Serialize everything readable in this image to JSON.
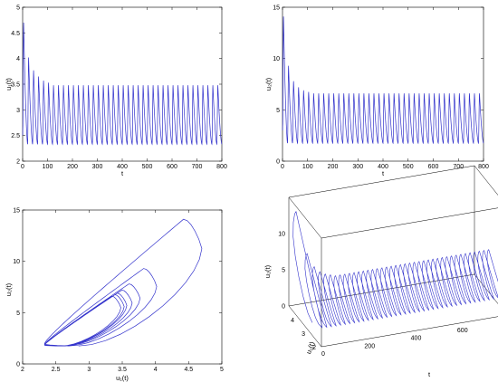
{
  "chart_data": [
    {
      "type": "line",
      "xlabel": "t",
      "ylabel": "u₁(t)",
      "xlim": [
        0,
        800
      ],
      "ylim": [
        2,
        5
      ],
      "xticks": [
        "0",
        "100",
        "200",
        "300",
        "400",
        "500",
        "600",
        "700",
        "800"
      ],
      "yticks": [
        "2",
        "2.5",
        "3",
        "3.5",
        "4",
        "4.5",
        "5"
      ],
      "series": [
        {
          "color": "#3333cc",
          "period": 20,
          "oscillation_max": 3.48,
          "oscillation_min": 2.33,
          "first_peaks": [
            {
              "t": 4,
              "value": 4.7
            },
            {
              "t": 24,
              "value": 4.02
            },
            {
              "t": 44,
              "value": 3.77
            },
            {
              "t": 64,
              "value": 3.65
            },
            {
              "t": 84,
              "value": 3.57
            },
            {
              "t": 104,
              "value": 3.53
            }
          ]
        }
      ]
    },
    {
      "type": "line",
      "xlabel": "t",
      "ylabel": "u₂(t)",
      "xlim": [
        0,
        800
      ],
      "ylim": [
        0,
        15
      ],
      "xticks": [
        "0",
        "100",
        "200",
        "300",
        "400",
        "500",
        "600",
        "700",
        "800"
      ],
      "yticks": [
        "0",
        "5",
        "10",
        "15"
      ],
      "series": [
        {
          "color": "#3333cc",
          "period": 20,
          "oscillation_max": 6.6,
          "oscillation_min": 1.75,
          "first_peaks": [
            {
              "t": 4,
              "value": 14.1
            },
            {
              "t": 24,
              "value": 9.3
            },
            {
              "t": 44,
              "value": 7.8
            },
            {
              "t": 64,
              "value": 7.2
            },
            {
              "t": 84,
              "value": 6.9
            },
            {
              "t": 104,
              "value": 6.75
            }
          ]
        }
      ]
    },
    {
      "type": "line",
      "xlabel": "u₁(t)",
      "ylabel": "u₂(t)",
      "xlim": [
        2,
        5
      ],
      "ylim": [
        0,
        15
      ],
      "xticks": [
        "2",
        "2.5",
        "3",
        "3.5",
        "4",
        "4.5",
        "5"
      ],
      "yticks": [
        "0",
        "5",
        "10",
        "15"
      ],
      "series": [
        {
          "color": "#3333cc",
          "limit_cycle": {
            "u1_min": 2.33,
            "u1_max": 3.48,
            "u2_min": 1.75,
            "u2_max": 6.6
          },
          "outer_loop": {
            "u1_max": 4.7,
            "u2_max": 14.1
          }
        }
      ]
    },
    {
      "type": "line",
      "xlabel": "t",
      "ylabel": "u₂(t)",
      "zlabel": "u₁(t)",
      "xlim": [
        0,
        800
      ],
      "ylim": [
        2,
        5
      ],
      "zlim": [
        0,
        15
      ],
      "xticks": [
        "0",
        "200",
        "400",
        "600",
        "800"
      ],
      "yticks": [
        "2",
        "3",
        "4"
      ],
      "zticks": [
        "0",
        "5",
        "10"
      ],
      "series": [
        {
          "color": "#3333cc",
          "period": 20,
          "u1_range": [
            2.33,
            3.48
          ],
          "u2_range": [
            1.75,
            6.6
          ],
          "first_peak": {
            "t": 4,
            "u1": 4.7,
            "u2": 14.1
          }
        }
      ]
    }
  ]
}
